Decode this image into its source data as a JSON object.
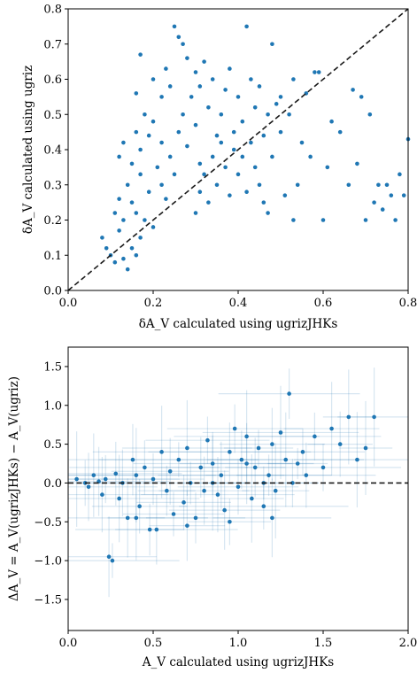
{
  "chart_data": [
    {
      "type": "scatter",
      "xlabel": "δA_V calculated using ugrizJHKs",
      "ylabel": "δA_V calculated using ugriz",
      "xlim": [
        0,
        0.8
      ],
      "ylim": [
        0,
        0.8
      ],
      "x_ticks": [
        "0.0",
        "0.2",
        "0.4",
        "0.6",
        "0.8"
      ],
      "y_ticks": [
        "0.0",
        "0.1",
        "0.2",
        "0.3",
        "0.4",
        "0.5",
        "0.6",
        "0.7",
        "0.8"
      ],
      "reference_line": "y = x (dashed)",
      "color": "#1f77b4",
      "points": [
        [
          0.08,
          0.15
        ],
        [
          0.09,
          0.12
        ],
        [
          0.1,
          0.1
        ],
        [
          0.11,
          0.08
        ],
        [
          0.12,
          0.17
        ],
        [
          0.13,
          0.09
        ],
        [
          0.14,
          0.06
        ],
        [
          0.15,
          0.12
        ],
        [
          0.16,
          0.1
        ],
        [
          0.17,
          0.15
        ],
        [
          0.11,
          0.22
        ],
        [
          0.12,
          0.26
        ],
        [
          0.13,
          0.2
        ],
        [
          0.14,
          0.3
        ],
        [
          0.15,
          0.25
        ],
        [
          0.16,
          0.22
        ],
        [
          0.17,
          0.33
        ],
        [
          0.18,
          0.2
        ],
        [
          0.19,
          0.28
        ],
        [
          0.2,
          0.18
        ],
        [
          0.12,
          0.38
        ],
        [
          0.13,
          0.42
        ],
        [
          0.15,
          0.36
        ],
        [
          0.16,
          0.45
        ],
        [
          0.17,
          0.4
        ],
        [
          0.18,
          0.5
        ],
        [
          0.19,
          0.44
        ],
        [
          0.2,
          0.48
        ],
        [
          0.21,
          0.35
        ],
        [
          0.22,
          0.42
        ],
        [
          0.16,
          0.56
        ],
        [
          0.17,
          0.67
        ],
        [
          0.2,
          0.6
        ],
        [
          0.22,
          0.55
        ],
        [
          0.23,
          0.63
        ],
        [
          0.24,
          0.58
        ],
        [
          0.25,
          0.75
        ],
        [
          0.26,
          0.72
        ],
        [
          0.27,
          0.7
        ],
        [
          0.28,
          0.66
        ],
        [
          0.22,
          0.3
        ],
        [
          0.23,
          0.26
        ],
        [
          0.24,
          0.38
        ],
        [
          0.25,
          0.33
        ],
        [
          0.26,
          0.45
        ],
        [
          0.27,
          0.5
        ],
        [
          0.28,
          0.41
        ],
        [
          0.29,
          0.55
        ],
        [
          0.3,
          0.47
        ],
        [
          0.31,
          0.36
        ],
        [
          0.3,
          0.62
        ],
        [
          0.31,
          0.58
        ],
        [
          0.32,
          0.65
        ],
        [
          0.33,
          0.52
        ],
        [
          0.34,
          0.6
        ],
        [
          0.35,
          0.44
        ],
        [
          0.36,
          0.5
        ],
        [
          0.37,
          0.57
        ],
        [
          0.38,
          0.63
        ],
        [
          0.39,
          0.45
        ],
        [
          0.3,
          0.22
        ],
        [
          0.31,
          0.28
        ],
        [
          0.32,
          0.33
        ],
        [
          0.33,
          0.25
        ],
        [
          0.34,
          0.38
        ],
        [
          0.35,
          0.3
        ],
        [
          0.36,
          0.42
        ],
        [
          0.37,
          0.35
        ],
        [
          0.38,
          0.27
        ],
        [
          0.39,
          0.4
        ],
        [
          0.4,
          0.55
        ],
        [
          0.41,
          0.48
        ],
        [
          0.42,
          0.75
        ],
        [
          0.43,
          0.6
        ],
        [
          0.44,
          0.52
        ],
        [
          0.45,
          0.58
        ],
        [
          0.46,
          0.44
        ],
        [
          0.47,
          0.5
        ],
        [
          0.48,
          0.7
        ],
        [
          0.49,
          0.53
        ],
        [
          0.4,
          0.33
        ],
        [
          0.41,
          0.38
        ],
        [
          0.42,
          0.28
        ],
        [
          0.43,
          0.42
        ],
        [
          0.44,
          0.35
        ],
        [
          0.45,
          0.3
        ],
        [
          0.46,
          0.25
        ],
        [
          0.47,
          0.22
        ],
        [
          0.48,
          0.38
        ],
        [
          0.5,
          0.45
        ],
        [
          0.5,
          0.55
        ],
        [
          0.52,
          0.5
        ],
        [
          0.53,
          0.6
        ],
        [
          0.54,
          0.3
        ],
        [
          0.55,
          0.42
        ],
        [
          0.56,
          0.56
        ],
        [
          0.58,
          0.62
        ],
        [
          0.59,
          0.62
        ],
        [
          0.6,
          0.2
        ],
        [
          0.61,
          0.35
        ],
        [
          0.62,
          0.48
        ],
        [
          0.64,
          0.45
        ],
        [
          0.66,
          0.3
        ],
        [
          0.67,
          0.57
        ],
        [
          0.68,
          0.36
        ],
        [
          0.7,
          0.2
        ],
        [
          0.71,
          0.5
        ],
        [
          0.72,
          0.25
        ],
        [
          0.73,
          0.3
        ],
        [
          0.74,
          0.23
        ],
        [
          0.75,
          0.3
        ],
        [
          0.76,
          0.27
        ],
        [
          0.77,
          0.2
        ],
        [
          0.78,
          0.33
        ],
        [
          0.79,
          0.27
        ],
        [
          0.8,
          0.43
        ],
        [
          0.69,
          0.55
        ],
        [
          0.57,
          0.38
        ],
        [
          0.51,
          0.27
        ],
        [
          0.53,
          0.2
        ]
      ]
    },
    {
      "type": "scatter",
      "xlabel": "A_V calculated using ugrizJHKs",
      "ylabel": "ΔA_V = A_V(ugrizJHKs) − A_V(ugriz)",
      "xlim": [
        0,
        2.0
      ],
      "ylim": [
        -1.9,
        1.75
      ],
      "x_ticks": [
        "0.0",
        "0.5",
        "1.0",
        "1.5",
        "2.0"
      ],
      "y_ticks": [
        "−1.5",
        "−1.0",
        "−0.5",
        "0.0",
        "0.5",
        "1.0",
        "1.5"
      ],
      "reference_line": "y = 0 (dashed)",
      "error_bars": true,
      "color": "#1f77b4",
      "points": [
        [
          0.05,
          0.05
        ],
        [
          0.1,
          0.0
        ],
        [
          0.12,
          -0.05
        ],
        [
          0.15,
          0.1
        ],
        [
          0.18,
          0.02
        ],
        [
          0.2,
          -0.15
        ],
        [
          0.22,
          0.05
        ],
        [
          0.24,
          -0.95
        ],
        [
          0.26,
          -1.0
        ],
        [
          0.28,
          0.12
        ],
        [
          0.3,
          -0.2
        ],
        [
          0.32,
          0.0
        ],
        [
          0.35,
          -0.45
        ],
        [
          0.38,
          0.3
        ],
        [
          0.4,
          0.1
        ],
        [
          0.42,
          -0.3
        ],
        [
          0.45,
          0.2
        ],
        [
          0.48,
          -0.6
        ],
        [
          0.5,
          0.05
        ],
        [
          0.52,
          -0.6
        ],
        [
          0.55,
          0.4
        ],
        [
          0.58,
          -0.1
        ],
        [
          0.6,
          0.15
        ],
        [
          0.62,
          -0.4
        ],
        [
          0.65,
          0.3
        ],
        [
          0.68,
          -0.25
        ],
        [
          0.7,
          0.45
        ],
        [
          0.72,
          0.0
        ],
        [
          0.75,
          -0.45
        ],
        [
          0.78,
          0.2
        ],
        [
          0.8,
          -0.1
        ],
        [
          0.82,
          0.55
        ],
        [
          0.85,
          0.25
        ],
        [
          0.88,
          -0.15
        ],
        [
          0.9,
          0.1
        ],
        [
          0.92,
          -0.35
        ],
        [
          0.95,
          0.4
        ],
        [
          0.98,
          0.7
        ],
        [
          1.0,
          -0.05
        ],
        [
          1.02,
          0.3
        ],
        [
          1.05,
          0.6
        ],
        [
          1.08,
          -0.2
        ],
        [
          1.1,
          0.2
        ],
        [
          1.12,
          0.45
        ],
        [
          1.15,
          -0.3
        ],
        [
          1.18,
          0.1
        ],
        [
          1.2,
          0.5
        ],
        [
          1.22,
          -0.1
        ],
        [
          1.25,
          0.65
        ],
        [
          1.28,
          0.3
        ],
        [
          1.3,
          1.15
        ],
        [
          1.32,
          0.0
        ],
        [
          1.35,
          0.25
        ],
        [
          1.38,
          0.4
        ],
        [
          1.4,
          0.1
        ],
        [
          1.45,
          0.6
        ],
        [
          1.5,
          0.2
        ],
        [
          1.55,
          0.7
        ],
        [
          1.6,
          0.5
        ],
        [
          1.65,
          0.85
        ],
        [
          1.7,
          0.3
        ],
        [
          1.75,
          0.45
        ],
        [
          1.8,
          0.85
        ],
        [
          1.2,
          -0.45
        ],
        [
          0.95,
          -0.5
        ],
        [
          0.7,
          -0.55
        ],
        [
          0.4,
          -0.45
        ],
        [
          1.05,
          0.25
        ],
        [
          1.15,
          0.0
        ],
        [
          0.85,
          0.0
        ]
      ]
    }
  ]
}
